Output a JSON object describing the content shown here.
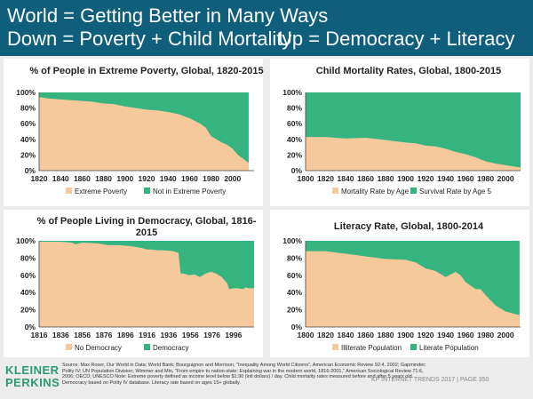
{
  "header": {
    "line1": "World = Getting Better in Many Ways",
    "line2a": "Down = Poverty + Child Mortality",
    "line2b": "Up = Democracy + Literacy"
  },
  "colors": {
    "bad": "#f5c99b",
    "good": "#35b47f",
    "header_bg": "#0f5e7c",
    "logo": "#2a9a6f"
  },
  "footer": {
    "logo_line1": "KLEINER",
    "logo_line2": "PERKINS",
    "source": "Source: Max Roser, Our World in Data; World Bank; Bourguignon and Morrison, \"Inequality Among World Citizens\", American Economic Review 92:4, 2002; Gapminder; Polity IV; UN Population Division; Wimmer and Min, \"From empire to nation-state: Explaining war in the modern world, 1816-2001,\" American Sociological Review 71:6, 2006; OECD; UNESCO Note: Extreme poverty defined as income level below $1.90 (intl dollars) / day. Child mortality rates measured before and after 5 years old. Democracy based on Polity IV database. Literacy rate based on ages 15+ globally.",
    "page": "KP INTERNET TRENDS 2017  |  PAGE 350"
  },
  "chart_data": [
    {
      "type": "area",
      "title": "% of People in Extreme Poverty, Global, 1820-2015",
      "xlim": [
        1820,
        2020
      ],
      "ylim": [
        0,
        100
      ],
      "x_ticks": [
        "1820",
        "1840",
        "1860",
        "1880",
        "1900",
        "1920",
        "1940",
        "1960",
        "1980",
        "2000"
      ],
      "y_ticks": [
        "0%",
        "20%",
        "40%",
        "60%",
        "80%",
        "100%"
      ],
      "series": [
        {
          "name": "Extreme Poverty",
          "color": "bad"
        },
        {
          "name": "Not in Extreme Poverty",
          "color": "good"
        }
      ],
      "x": [
        1820,
        1830,
        1840,
        1850,
        1860,
        1870,
        1880,
        1890,
        1900,
        1910,
        1920,
        1930,
        1940,
        1950,
        1960,
        1970,
        1975,
        1980,
        1985,
        1990,
        1995,
        2000,
        2005,
        2010,
        2015
      ],
      "values": [
        94,
        92,
        91,
        90,
        89,
        88,
        86,
        85,
        82,
        80,
        78,
        77,
        75,
        72,
        67,
        60,
        55,
        44,
        40,
        36,
        33,
        28,
        20,
        15,
        10
      ]
    },
    {
      "type": "area",
      "title": "Child Mortality Rates, Global, 1800-2015",
      "xlim": [
        1800,
        2015
      ],
      "ylim": [
        0,
        100
      ],
      "x_ticks": [
        "1800",
        "1820",
        "1840",
        "1860",
        "1880",
        "1900",
        "1920",
        "1940",
        "1960",
        "1980",
        "2000"
      ],
      "y_ticks": [
        "0%",
        "20%",
        "40%",
        "60%",
        "80%",
        "100%"
      ],
      "series": [
        {
          "name": "Mortality Rate by Age 5",
          "color": "bad"
        },
        {
          "name": "Survival Rate by Age 5",
          "color": "good"
        }
      ],
      "x": [
        1800,
        1820,
        1840,
        1860,
        1880,
        1900,
        1910,
        1920,
        1930,
        1940,
        1950,
        1960,
        1970,
        1980,
        1990,
        2000,
        2010,
        2015
      ],
      "values": [
        43,
        43,
        41,
        42,
        39,
        36,
        35,
        32,
        31,
        28,
        24,
        21,
        17,
        12,
        9,
        7,
        5,
        4
      ]
    },
    {
      "type": "area",
      "title": "% of People Living in Democracy, Global, 1816-2015",
      "xlim": [
        1816,
        2015
      ],
      "ylim": [
        0,
        100
      ],
      "x_ticks": [
        "1816",
        "1836",
        "1856",
        "1876",
        "1896",
        "1916",
        "1936",
        "1956",
        "1976",
        "1996"
      ],
      "y_ticks": [
        "0%",
        "20%",
        "40%",
        "60%",
        "80%",
        "100%"
      ],
      "series": [
        {
          "name": "No Democracy",
          "color": "bad"
        },
        {
          "name": "Democracy",
          "color": "good"
        }
      ],
      "x": [
        1816,
        1836,
        1846,
        1850,
        1856,
        1870,
        1880,
        1890,
        1900,
        1910,
        1916,
        1920,
        1925,
        1930,
        1940,
        1945,
        1947,
        1950,
        1955,
        1960,
        1965,
        1970,
        1975,
        1980,
        1985,
        1990,
        1992,
        1996,
        2000,
        2005,
        2007,
        2010,
        2015
      ],
      "values": [
        99,
        99,
        98,
        96,
        98,
        97,
        95,
        95,
        94,
        92,
        90,
        90,
        89,
        89,
        88,
        86,
        62,
        62,
        60,
        61,
        58,
        62,
        64,
        62,
        58,
        51,
        44,
        45,
        45,
        44,
        46,
        45,
        45
      ]
    },
    {
      "type": "area",
      "title": "Literacy Rate, Global, 1800-2014",
      "xlim": [
        1800,
        2015
      ],
      "ylim": [
        0,
        100
      ],
      "x_ticks": [
        "1800",
        "1820",
        "1840",
        "1860",
        "1880",
        "1900",
        "1920",
        "1940",
        "1960",
        "1980",
        "2000"
      ],
      "y_ticks": [
        "0%",
        "20%",
        "40%",
        "60%",
        "80%",
        "100%"
      ],
      "series": [
        {
          "name": "Illiterate Population",
          "color": "bad"
        },
        {
          "name": "Literate Population",
          "color": "good"
        }
      ],
      "x": [
        1800,
        1820,
        1840,
        1860,
        1880,
        1900,
        1910,
        1920,
        1930,
        1940,
        1950,
        1955,
        1960,
        1970,
        1975,
        1980,
        1990,
        2000,
        2010,
        2014
      ],
      "values": [
        88,
        88,
        85,
        82,
        79,
        78,
        75,
        68,
        65,
        58,
        64,
        60,
        52,
        44,
        44,
        37,
        25,
        18,
        15,
        14
      ]
    }
  ]
}
